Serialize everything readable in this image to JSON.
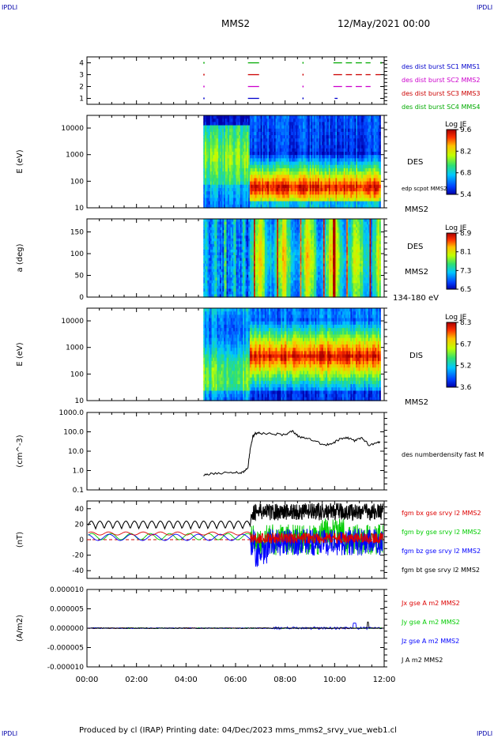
{
  "corners": {
    "tl": "IPDLI",
    "tr": "IPDLI",
    "bl": "IPDLI",
    "br": "IPDLI"
  },
  "header": {
    "spacecraft": "MMS2",
    "datetime": "12/May/2021 00:00"
  },
  "footer": "Produced by cl (IRAP)   Printing date: 04/Dec/2023   mms_mms2_srvy_vue_web1.cl",
  "colors": {
    "sc1": "#0000cc",
    "sc2": "#cc00cc",
    "sc3": "#cc0000",
    "sc4": "#00aa00",
    "bx": "#dd0000",
    "by": "#00cc00",
    "bz": "#0000ff",
    "bt": "#000000"
  },
  "chart_data": [
    {
      "id": "availability",
      "type": "scatter",
      "yticks": [
        "1",
        "2",
        "3",
        "4"
      ],
      "ylim": [
        0.5,
        4.5
      ],
      "legend": [
        {
          "label": "des dist burst SC1 MMS1",
          "color": "#0000cc"
        },
        {
          "label": "des dist burst SC2 MMS2",
          "color": "#cc00cc"
        },
        {
          "label": "des dist burst SC3 MMS3",
          "color": "#cc0000"
        },
        {
          "label": "des dist burst SC4 MMS4",
          "color": "#00aa00"
        }
      ],
      "segments": [
        {
          "sc": 1,
          "start": 6.5,
          "end": 6.95
        },
        {
          "sc": 1,
          "start": 10.0,
          "end": 10.12
        },
        {
          "sc": 2,
          "start": 6.5,
          "end": 6.95
        },
        {
          "sc": 2,
          "start": 9.95,
          "end": 10.3
        },
        {
          "sc": 2,
          "start": 10.45,
          "end": 10.7
        },
        {
          "sc": 2,
          "start": 10.85,
          "end": 11.1
        },
        {
          "sc": 2,
          "start": 11.25,
          "end": 11.45
        },
        {
          "sc": 3,
          "start": 6.5,
          "end": 6.95
        },
        {
          "sc": 3,
          "start": 9.95,
          "end": 10.3
        },
        {
          "sc": 3,
          "start": 10.45,
          "end": 10.7
        },
        {
          "sc": 3,
          "start": 10.85,
          "end": 11.1
        },
        {
          "sc": 3,
          "start": 11.25,
          "end": 11.45
        },
        {
          "sc": 3,
          "start": 11.65,
          "end": 11.85
        },
        {
          "sc": 4,
          "start": 6.5,
          "end": 6.95
        },
        {
          "sc": 4,
          "start": 9.95,
          "end": 10.3
        },
        {
          "sc": 4,
          "start": 10.45,
          "end": 10.7
        },
        {
          "sc": 4,
          "start": 10.85,
          "end": 11.1
        },
        {
          "sc": 4,
          "start": 11.25,
          "end": 11.45
        }
      ],
      "dots": [
        {
          "sc": 1,
          "t": 4.7
        },
        {
          "sc": 2,
          "t": 4.7
        },
        {
          "sc": 3,
          "t": 4.7
        },
        {
          "sc": 4,
          "t": 4.7
        },
        {
          "sc": 1,
          "t": 8.7
        },
        {
          "sc": 2,
          "t": 8.7
        },
        {
          "sc": 3,
          "t": 8.7
        },
        {
          "sc": 4,
          "t": 8.7
        },
        {
          "sc": 4,
          "t": 11.85
        }
      ]
    },
    {
      "id": "des-energy",
      "type": "heatmap",
      "ylabel": "E (eV)",
      "ylog": true,
      "yticks": [
        "10",
        "100",
        "1000",
        "10000"
      ],
      "ylim": [
        10,
        30000
      ],
      "right_labels": [
        "DES",
        "edp scpot MMS2",
        "MMS2"
      ],
      "colorbar": {
        "title": "Log JE",
        "ticks": [
          "9.6",
          "8.2",
          "6.8",
          "5.4"
        ],
        "range": [
          5.4,
          9.6
        ]
      }
    },
    {
      "id": "des-pitch",
      "type": "heatmap",
      "ylabel": "a (deg)",
      "yticks": [
        "0",
        "50",
        "100",
        "150"
      ],
      "ylim": [
        0,
        180
      ],
      "right_labels": [
        "DES",
        "MMS2",
        "134-180 eV"
      ],
      "colorbar": {
        "title": "Log JE",
        "ticks": [
          "8.9",
          "8.1",
          "7.3",
          "6.5"
        ],
        "range": [
          6.5,
          8.9
        ]
      }
    },
    {
      "id": "dis-energy",
      "type": "heatmap",
      "ylabel": "E (eV)",
      "ylog": true,
      "yticks": [
        "10",
        "100",
        "1000",
        "10000"
      ],
      "ylim": [
        10,
        30000
      ],
      "right_labels": [
        "DIS",
        "MMS2"
      ],
      "colorbar": {
        "title": "Log JE",
        "ticks": [
          "8.3",
          "6.7",
          "5.2",
          "3.6"
        ],
        "range": [
          3.6,
          8.3
        ]
      }
    },
    {
      "id": "density",
      "type": "line",
      "ylabel": "(cm^-3)",
      "ylog": true,
      "yticks": [
        "0.1",
        "1.0",
        "10.0",
        "100.0",
        "1000.0"
      ],
      "ylim": [
        0.1,
        1000
      ],
      "series": [
        {
          "name": "des numberdensity fast M",
          "color": "#000000",
          "x": [
            4.7,
            5.0,
            5.5,
            6.0,
            6.3,
            6.5,
            6.6,
            6.7,
            6.8,
            7.0,
            7.5,
            8.0,
            8.3,
            8.6,
            8.9,
            9.3,
            9.6,
            9.9,
            10.2,
            10.5,
            10.8,
            11.1,
            11.4,
            11.7,
            11.85
          ],
          "y": [
            0.6,
            0.7,
            0.75,
            0.8,
            0.8,
            1.5,
            15,
            60,
            80,
            85,
            80,
            70,
            110,
            50,
            50,
            30,
            20,
            25,
            40,
            50,
            35,
            50,
            20,
            30,
            30
          ]
        }
      ]
    },
    {
      "id": "bfield",
      "type": "line",
      "ylabel": "(nT)",
      "yticks": [
        "-40",
        "-20",
        "0",
        "20",
        "40"
      ],
      "ylim": [
        -50,
        50
      ],
      "series": [
        {
          "name": "fgm bx gse srvy l2 MMS2",
          "color": "#dd0000"
        },
        {
          "name": "fgm by gse srvy l2 MMS2",
          "color": "#00cc00"
        },
        {
          "name": "fgm bz gse srvy l2 MMS2",
          "color": "#0000ff"
        },
        {
          "name": "fgm bt gse srvy l2 MMS2",
          "color": "#000000"
        }
      ]
    },
    {
      "id": "current",
      "type": "line",
      "ylabel": "(A/m2)",
      "yticks": [
        "-0.000010",
        "-0.000005",
        "0.000000",
        "0.000005",
        "0.000010"
      ],
      "ylim": [
        -1e-05,
        1e-05
      ],
      "series": [
        {
          "name": "Jx gse A m2 MMS2",
          "color": "#dd0000"
        },
        {
          "name": "Jy gse A m2 MMS2",
          "color": "#00cc00"
        },
        {
          "name": "Jz gse A m2 MMS2",
          "color": "#0000ff"
        },
        {
          "name": "J A m2 MMS2",
          "color": "#000000"
        }
      ]
    }
  ],
  "xaxis": {
    "ticks": [
      "00:00",
      "02:00",
      "04:00",
      "06:00",
      "08:00",
      "10:00",
      "12:00"
    ],
    "xlim": [
      0,
      12
    ]
  }
}
